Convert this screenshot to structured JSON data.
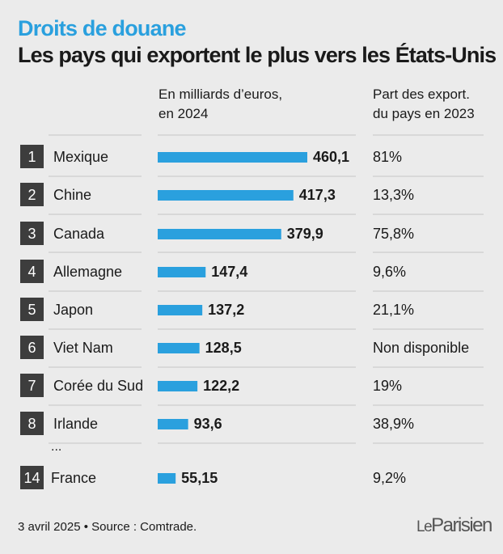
{
  "kicker": "Droits de douane",
  "title": "Les pays qui exportent le plus vers les États-Unis",
  "headers": {
    "value_line1": "En milliards d’euros,",
    "value_line2": "en 2024",
    "share_line1": "Part des export.",
    "share_line2": "du pays en 2023"
  },
  "ellipsis": "...",
  "footer": "3 avril 2025 • Source : Comtrade.",
  "logo": {
    "le": "Le",
    "name": "Parisien"
  },
  "colors": {
    "bar": "#2aa0de",
    "rank_bg": "#3d3d3d",
    "kicker": "#2aa0de"
  },
  "chart_data": {
    "type": "bar",
    "orientation": "horizontal",
    "categories": [
      "Mexique",
      "Chine",
      "Canada",
      "Allemagne",
      "Japon",
      "Viet Nam",
      "Corée du Sud",
      "Irlande",
      "France"
    ],
    "ranks": [
      "1",
      "2",
      "3",
      "4",
      "5",
      "6",
      "7",
      "8",
      "14"
    ],
    "values": [
      460.1,
      417.3,
      379.9,
      147.4,
      137.2,
      128.5,
      122.2,
      93.6,
      55.15
    ],
    "value_labels": [
      "460,1",
      "417,3",
      "379,9",
      "147,4",
      "137,2",
      "128,5",
      "122,2",
      "93,6",
      "55,15"
    ],
    "share_labels": [
      "81%",
      "13,3%",
      "75,8%",
      "9,6%",
      "21,1%",
      "Non disponible",
      "19%",
      "38,9%",
      "9,2%"
    ],
    "value_unit": "En milliards d’euros, en 2024",
    "share_unit": "Part des export. du pays en 2023",
    "xlim": [
      0,
      460.1
    ]
  }
}
